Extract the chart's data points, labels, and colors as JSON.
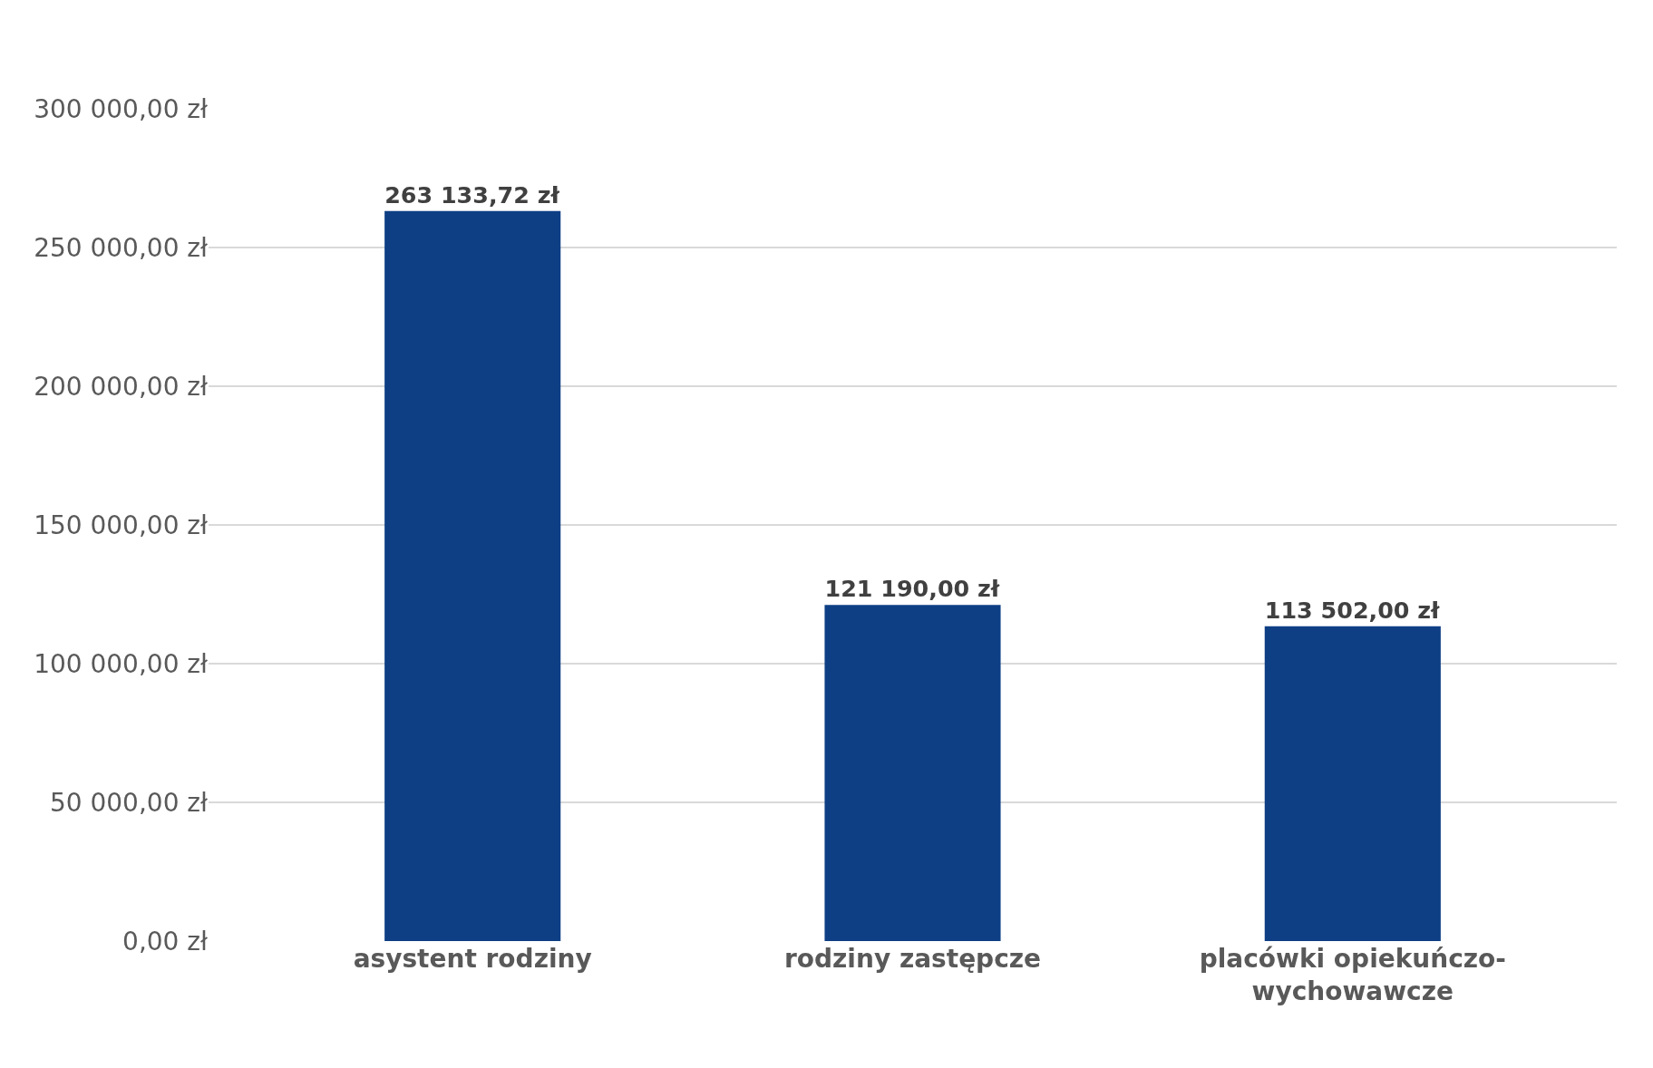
{
  "chart_data": {
    "type": "bar",
    "categories": [
      "asystent rodziny",
      "rodziny zastępcze",
      "placówki opiekuńczo-wychowawcze"
    ],
    "values": [
      263133.72,
      121190,
      113502
    ],
    "value_labels": [
      "263 133,72 zł",
      "121 190,00 zł",
      "113 502,00 zł"
    ],
    "color": "#0e3f85",
    "ylim": [
      0,
      300000
    ],
    "yticks": [
      {
        "value": 0,
        "label": "0,00 zł"
      },
      {
        "value": 50000,
        "label": "50 000,00 zł"
      },
      {
        "value": 100000,
        "label": "100 000,00 zł"
      },
      {
        "value": 150000,
        "label": "150 000,00 zł"
      },
      {
        "value": 200000,
        "label": "200 000,00 zł"
      },
      {
        "value": 250000,
        "label": "250 000,00 zł"
      },
      {
        "value": 300000,
        "label": "300 000,00 zł"
      }
    ],
    "grid": true
  }
}
